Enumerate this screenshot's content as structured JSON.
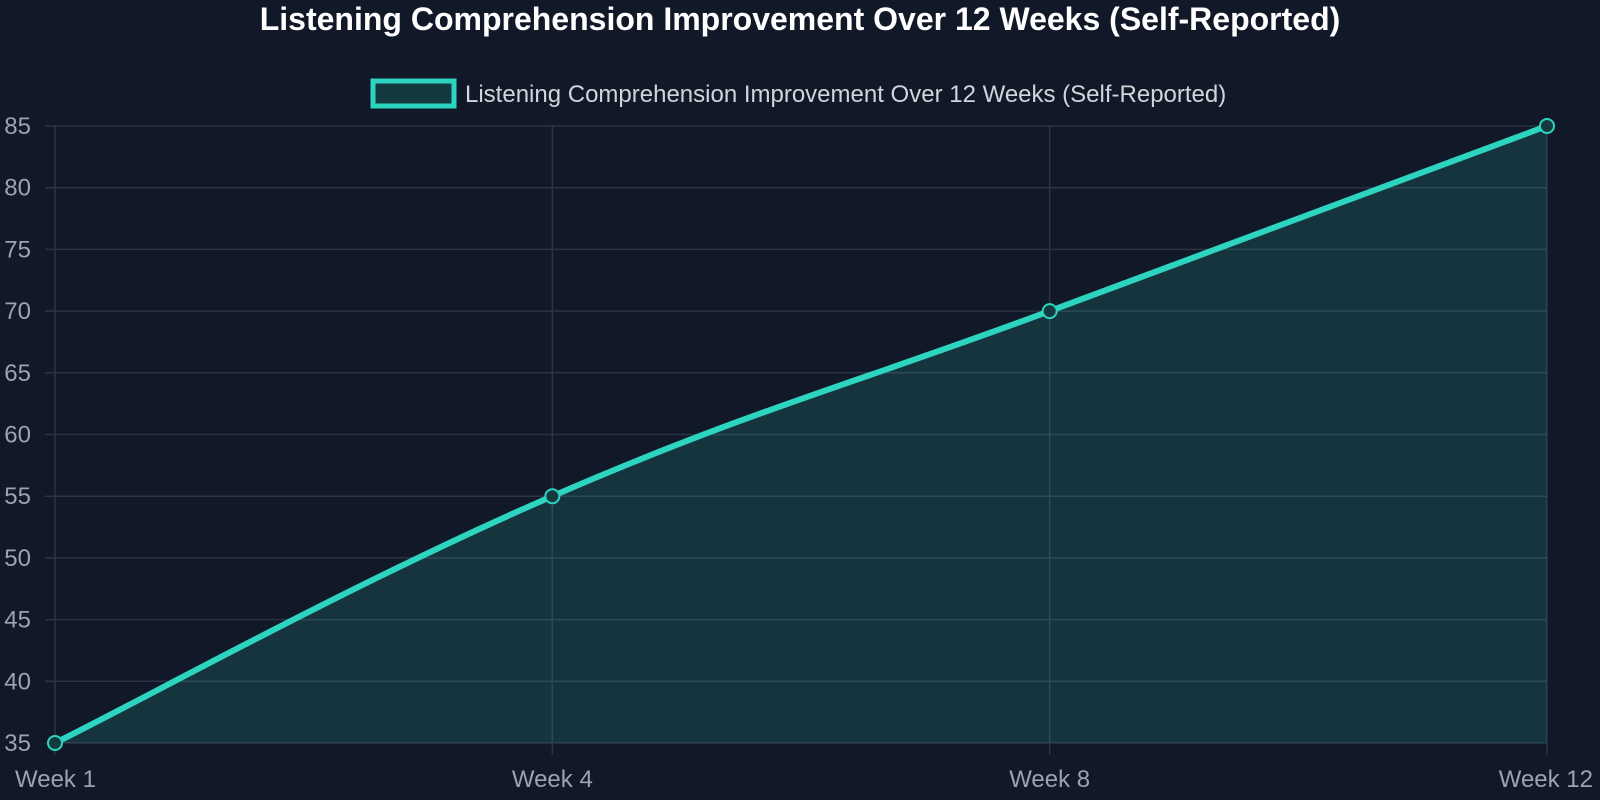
{
  "chart_data": {
    "type": "area",
    "title": "Listening Comprehension Improvement Over 12 Weeks (Self-Reported)",
    "xlabel": "",
    "ylabel": "",
    "categories": [
      "Week 1",
      "Week 4",
      "Week 8",
      "Week 12"
    ],
    "series": [
      {
        "name": "Listening Comprehension Improvement Over 12 Weeks (Self-Reported)",
        "values": [
          35,
          55,
          70,
          85
        ]
      }
    ],
    "ylim": [
      35,
      85
    ],
    "yticks": [
      35,
      40,
      45,
      50,
      55,
      60,
      65,
      70,
      75,
      80,
      85
    ],
    "grid": true,
    "legend": "top-center",
    "smooth": true
  },
  "colors": {
    "background": "#111827",
    "line": "#2dd4bf",
    "fill": "#2dd4bf",
    "grid": "#2b3444",
    "tick_text": "#9ca3af",
    "title_text": "#ffffff",
    "legend_text": "#d1d5db"
  }
}
